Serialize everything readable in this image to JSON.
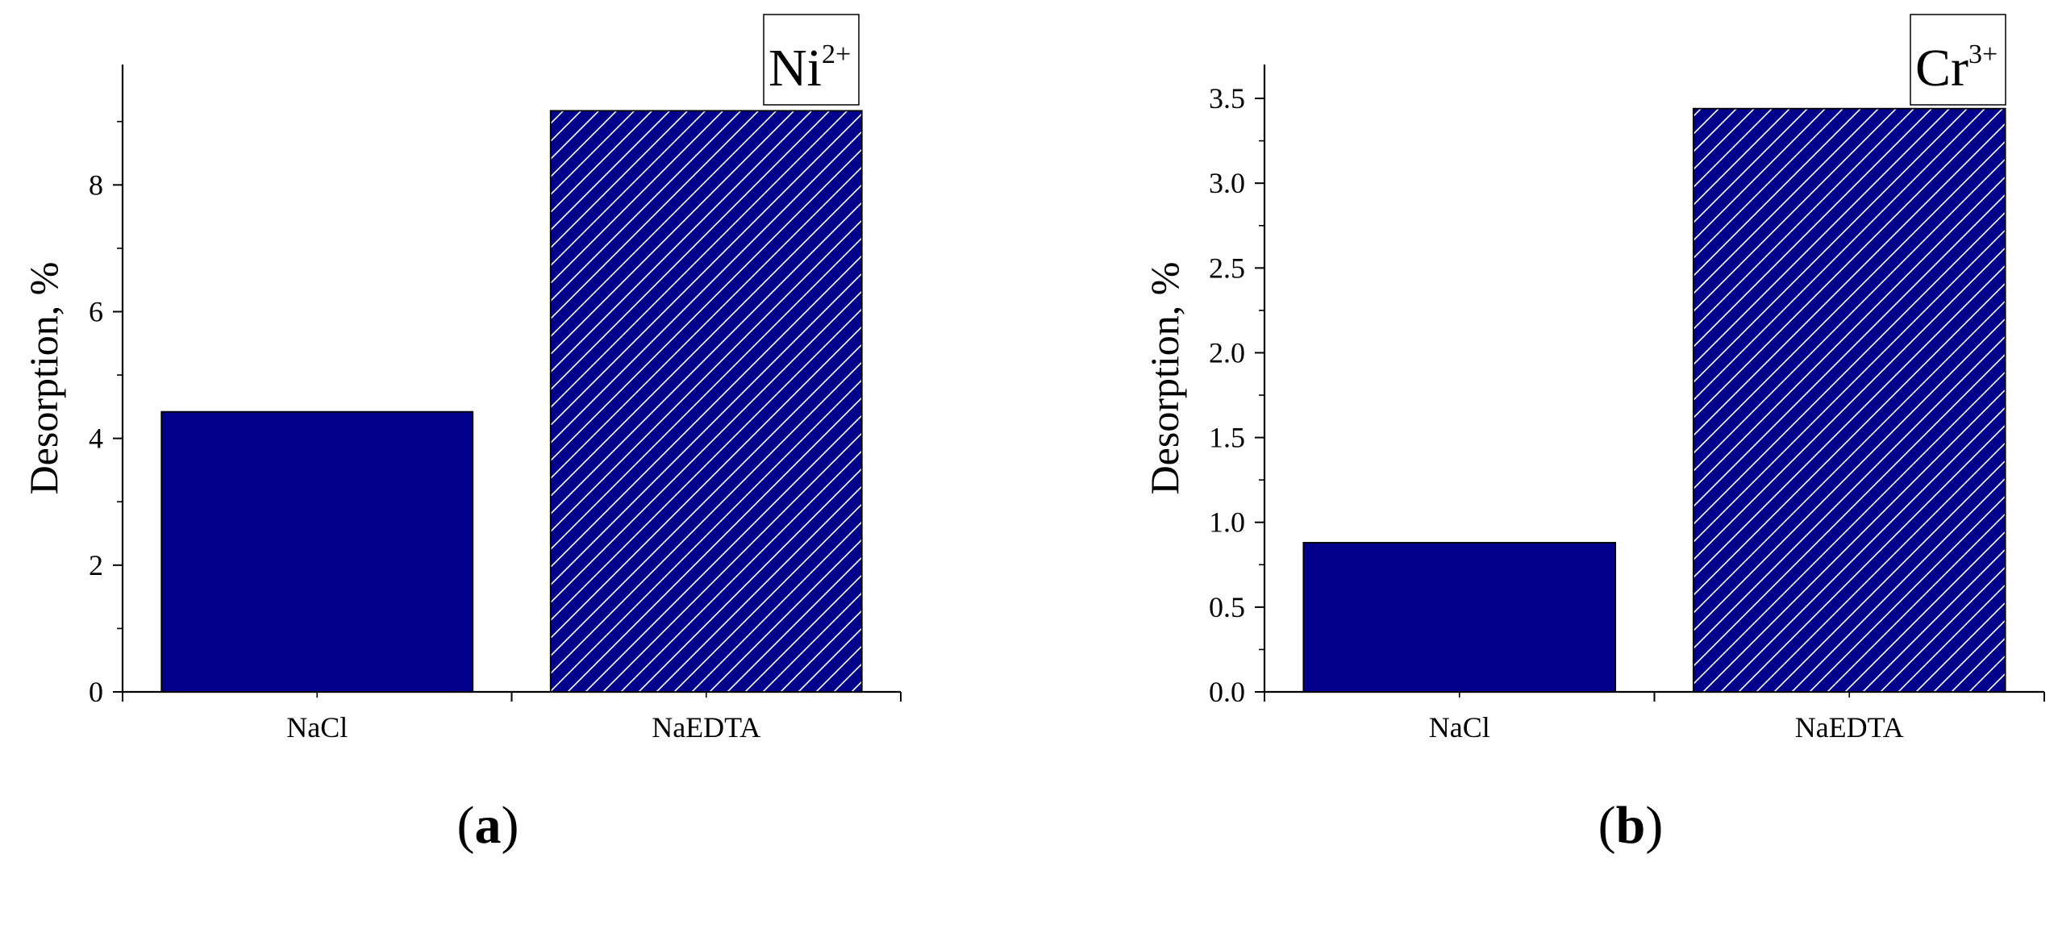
{
  "chart_data": [
    {
      "type": "bar",
      "categories": [
        "NaCl",
        "NaEDTA"
      ],
      "values": [
        4.42,
        9.17
      ],
      "bar_styles": [
        "solid",
        "hatched"
      ],
      "ylabel": "Desorption, %",
      "xlabel": "",
      "ylim": [
        0,
        9.9
      ],
      "yticks": [
        0,
        2,
        4,
        6,
        8
      ],
      "ytick_labels": [
        "0",
        "2",
        "4",
        "6",
        "8"
      ],
      "legend_box": {
        "base": "Ni",
        "charge": "2+"
      },
      "panel_label": {
        "open": "(",
        "letter": "a",
        "close": ")"
      },
      "bar_color": "#00008b",
      "grid": false
    },
    {
      "type": "bar",
      "categories": [
        "NaCl",
        "NaEDTA"
      ],
      "values": [
        0.88,
        3.44
      ],
      "bar_styles": [
        "solid",
        "hatched"
      ],
      "ylabel": "Desorption, %",
      "xlabel": "",
      "ylim": [
        0,
        3.7
      ],
      "yticks": [
        0,
        0.5,
        1.0,
        1.5,
        2.0,
        2.5,
        3.0,
        3.5
      ],
      "ytick_labels": [
        "0.0",
        "0.5",
        "1.0",
        "1.5",
        "2.0",
        "2.5",
        "3.0",
        "3.5"
      ],
      "legend_box": {
        "base": "Cr",
        "charge": "3+"
      },
      "panel_label": {
        "open": "(",
        "letter": "b",
        "close": ")"
      },
      "bar_color": "#00008b",
      "grid": false
    }
  ]
}
